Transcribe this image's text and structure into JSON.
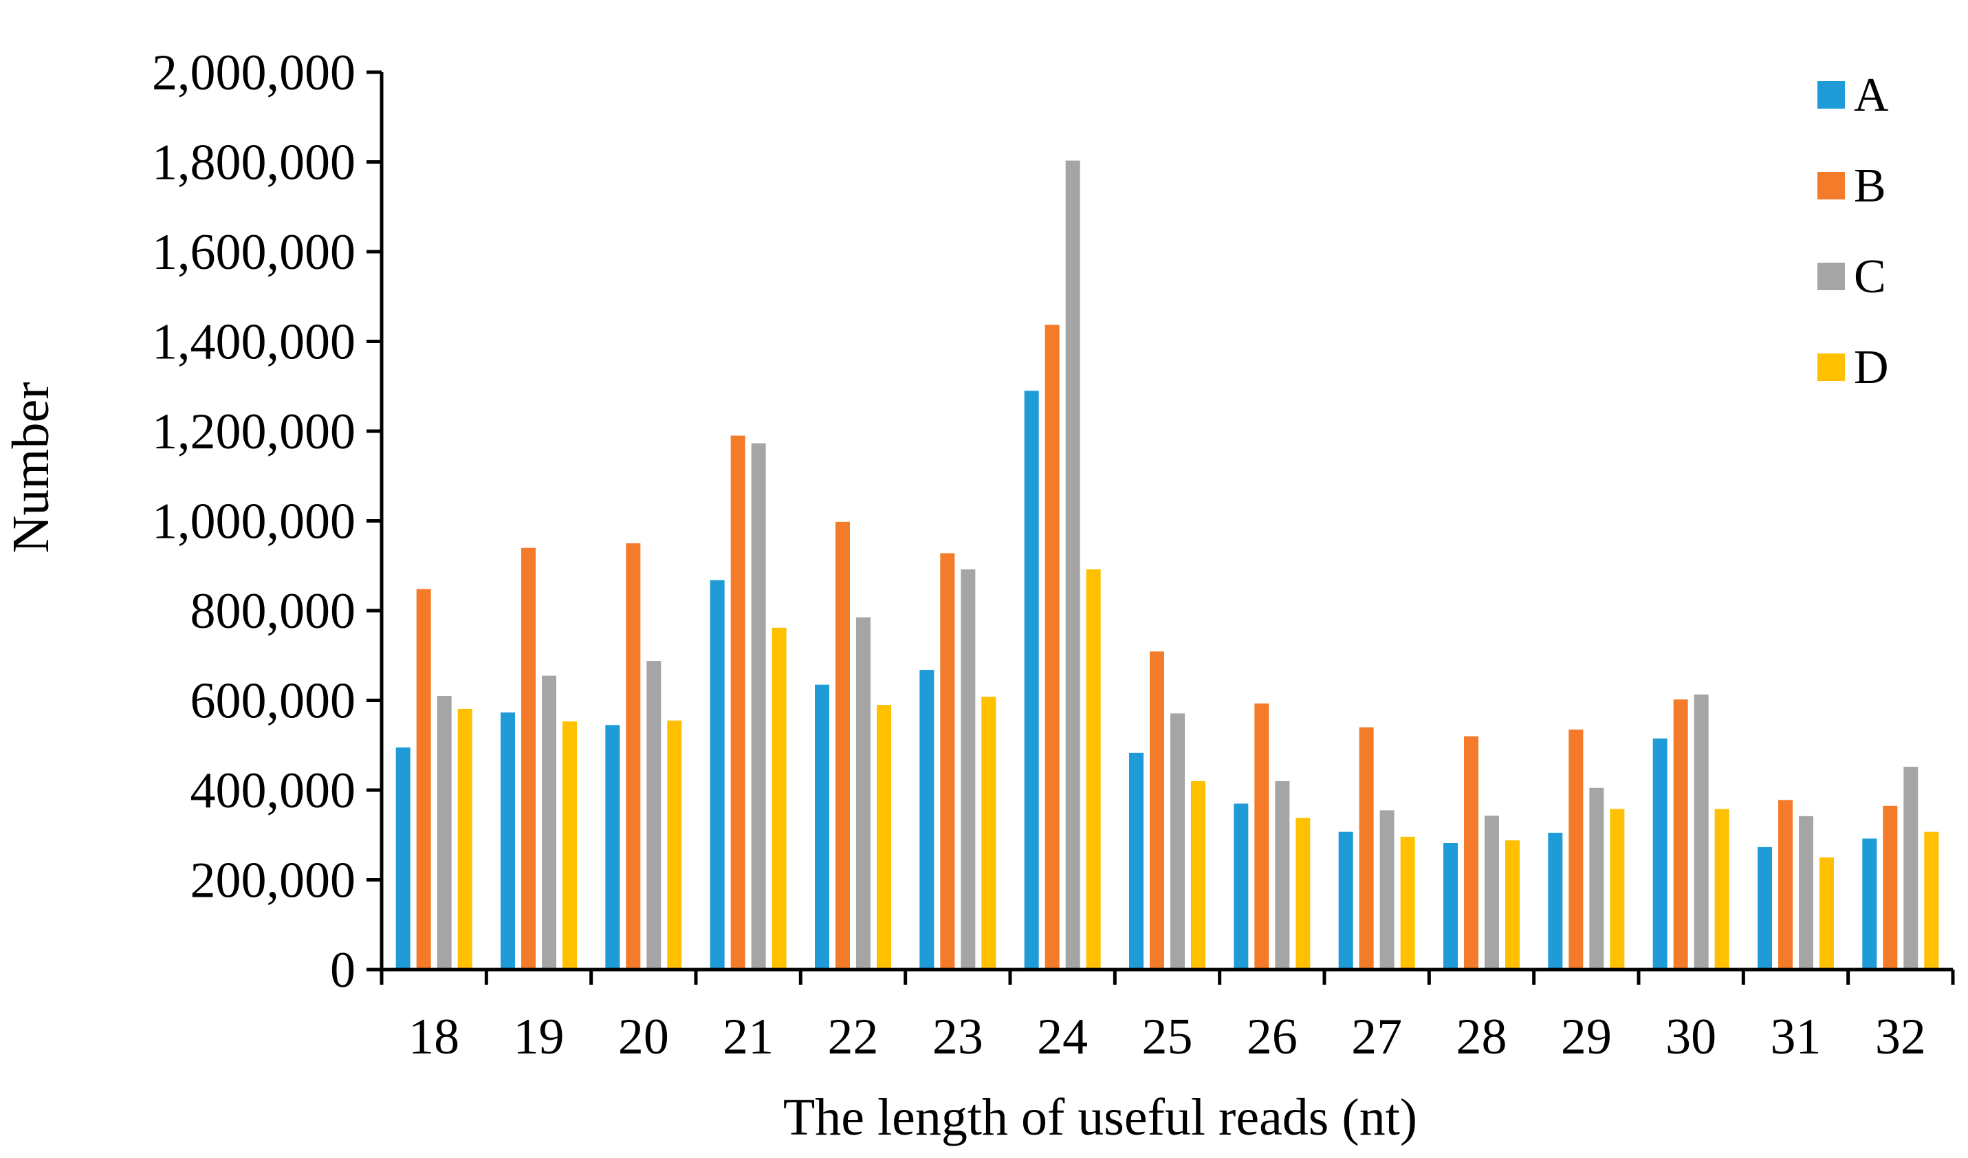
{
  "chart_data": {
    "type": "bar",
    "title": "",
    "xlabel": "The length of useful reads (nt)",
    "ylabel": "Number",
    "ylim": [
      0,
      2000000
    ],
    "yticks": [
      0,
      200000,
      400000,
      600000,
      800000,
      1000000,
      1200000,
      1400000,
      1600000,
      1800000,
      2000000
    ],
    "ytick_labels": [
      "0",
      "200,000",
      "400,000",
      "600,000",
      "800,000",
      "1,000,000",
      "1,200,000",
      "1,400,000",
      "1,600,000",
      "1,800,000",
      "2,000,000"
    ],
    "grid": false,
    "legend_position": "top-right",
    "categories": [
      "18",
      "19",
      "20",
      "21",
      "22",
      "23",
      "24",
      "25",
      "26",
      "27",
      "28",
      "29",
      "30",
      "31",
      "32"
    ],
    "series": [
      {
        "name": "A",
        "color": "#1F9BD7",
        "values": [
          495000,
          573000,
          545000,
          868000,
          635000,
          668000,
          1290000,
          483000,
          370000,
          307000,
          282000,
          305000,
          515000,
          273000,
          292000
        ]
      },
      {
        "name": "B",
        "color": "#F47B2A",
        "values": [
          848000,
          940000,
          950000,
          1190000,
          998000,
          928000,
          1437000,
          709000,
          593000,
          540000,
          520000,
          535000,
          602000,
          378000,
          365000
        ]
      },
      {
        "name": "C",
        "color": "#A5A5A5",
        "values": [
          610000,
          655000,
          688000,
          1173000,
          785000,
          892000,
          1803000,
          571000,
          420000,
          355000,
          343000,
          405000,
          613000,
          342000,
          452000
        ]
      },
      {
        "name": "D",
        "color": "#FFC000",
        "values": [
          581000,
          553000,
          555000,
          762000,
          590000,
          608000,
          892000,
          420000,
          338000,
          296000,
          288000,
          358000,
          358000,
          250000,
          307000
        ]
      }
    ]
  }
}
